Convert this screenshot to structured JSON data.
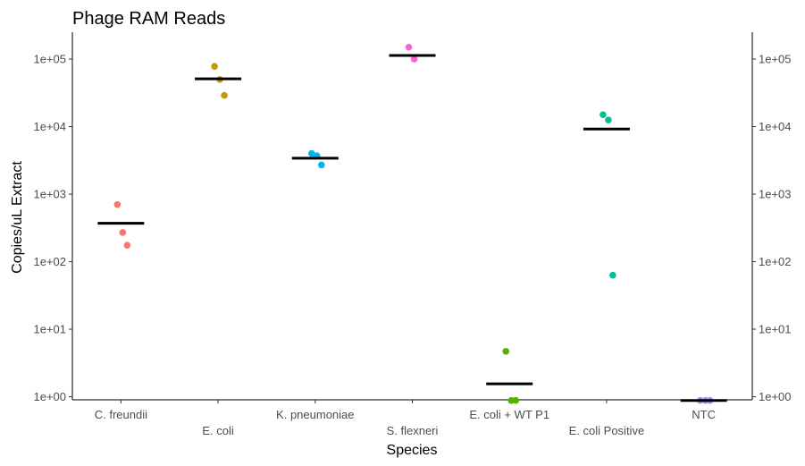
{
  "chart_data": {
    "type": "scatter",
    "title": "Phage RAM Reads",
    "xlabel": "Species",
    "ylabel": "Copies/uL Extract",
    "yscale": "log",
    "ylim": [
      0.9,
      250000
    ],
    "yticks": [
      1,
      10,
      100,
      1000,
      10000,
      100000
    ],
    "ytick_labels": [
      "1e+00",
      "1e+01",
      "1e+02",
      "1e+03",
      "1e+04",
      "1e+05"
    ],
    "secondary_y_axis": true,
    "grid": false,
    "legend": "none",
    "categories": [
      "C. freundii",
      "E. coli",
      "K. pneumoniae",
      "S. flexneri",
      "E. coli + WT P1",
      "E. coli Positive",
      "NTC"
    ],
    "series": [
      {
        "category": "C. freundii",
        "color": "#F8766D",
        "points": [
          700,
          270,
          175
        ],
        "median": 370
      },
      {
        "category": "E. coli",
        "color": "#C49A00",
        "points": [
          78000,
          50000,
          29000
        ],
        "median": 51000
      },
      {
        "category": "K. pneumoniae",
        "color": "#00B6EB",
        "points": [
          4000,
          3700,
          2700
        ],
        "median": 3400
      },
      {
        "category": "S. flexneri",
        "color": "#FB61D7",
        "points": [
          150000,
          100000
        ],
        "median": 113000
      },
      {
        "category": "E. coli + WT P1",
        "color": "#53B400",
        "points": [
          4.7,
          0.88,
          0.88
        ],
        "median": 1.55
      },
      {
        "category": "E. coli Positive",
        "color": "#00C094",
        "points": [
          15000,
          12500,
          63
        ],
        "median": 9200
      },
      {
        "category": "NTC",
        "color": "#A58AFF",
        "points": [
          0.88,
          0.88,
          0.88
        ],
        "median": 0.88
      }
    ]
  }
}
